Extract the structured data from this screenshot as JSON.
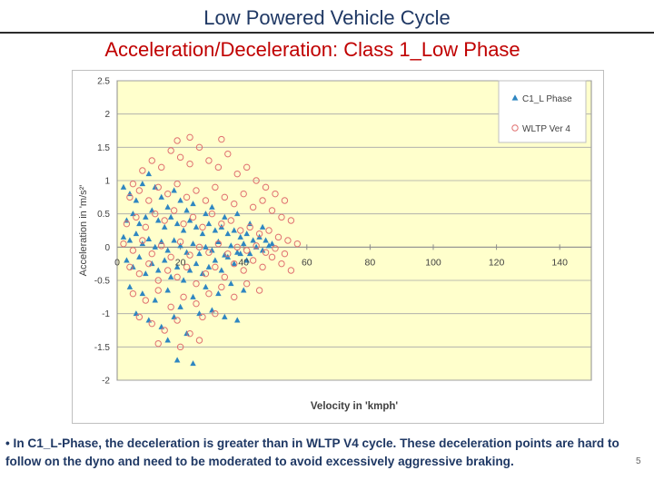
{
  "slide": {
    "title": "Low Powered Vehicle Cycle",
    "subtitle": "Acceleration/Deceleration: Class 1_Low Phase",
    "footnote": "• In C1_L-Phase, the deceleration is greater than in WLTP V4 cycle. These deceleration points are hard to follow on the dyno and need to be moderated to avoid excessively aggressive braking.",
    "page_number": "5"
  },
  "chart_data": {
    "type": "scatter",
    "xlabel": "Velocity in 'kmph'",
    "ylabel": "Acceleration in 'm/s²'",
    "xlim": [
      0,
      150
    ],
    "ylim": [
      -2,
      2.5
    ],
    "xticks": [
      0,
      20,
      40,
      60,
      80,
      100,
      120,
      140
    ],
    "yticks": [
      -2,
      -1.5,
      -1,
      -0.5,
      0,
      0.5,
      1,
      1.5,
      2,
      2.5
    ],
    "grid": "horizontal",
    "legend_position": "top-right",
    "plot_background": "#ffffcc",
    "series": [
      {
        "name": "C1_L Phase",
        "marker": "triangle",
        "color": "#2e86c1",
        "points": [
          [
            2,
            0.9
          ],
          [
            4,
            0.8
          ],
          [
            6,
            0.7
          ],
          [
            8,
            0.95
          ],
          [
            10,
            1.1
          ],
          [
            12,
            0.9
          ],
          [
            14,
            0.75
          ],
          [
            16,
            0.6
          ],
          [
            18,
            0.85
          ],
          [
            20,
            0.7
          ],
          [
            22,
            0.55
          ],
          [
            24,
            0.65
          ],
          [
            28,
            0.5
          ],
          [
            30,
            0.6
          ],
          [
            34,
            0.45
          ],
          [
            38,
            0.5
          ],
          [
            42,
            0.35
          ],
          [
            46,
            0.3
          ],
          [
            3,
            0.4
          ],
          [
            5,
            0.5
          ],
          [
            7,
            0.35
          ],
          [
            9,
            0.45
          ],
          [
            11,
            0.55
          ],
          [
            13,
            0.4
          ],
          [
            15,
            0.3
          ],
          [
            17,
            0.45
          ],
          [
            19,
            0.35
          ],
          [
            21,
            0.25
          ],
          [
            23,
            0.4
          ],
          [
            25,
            0.3
          ],
          [
            27,
            0.2
          ],
          [
            29,
            0.35
          ],
          [
            31,
            0.25
          ],
          [
            33,
            0.3
          ],
          [
            35,
            0.2
          ],
          [
            37,
            0.25
          ],
          [
            39,
            0.15
          ],
          [
            41,
            0.2
          ],
          [
            43,
            0.1
          ],
          [
            45,
            0.15
          ],
          [
            47,
            0.1
          ],
          [
            49,
            0.05
          ],
          [
            2,
            0.15
          ],
          [
            4,
            0.1
          ],
          [
            6,
            0.2
          ],
          [
            8,
            0.05
          ],
          [
            10,
            0.12
          ],
          [
            12,
            0.0
          ],
          [
            14,
            0.08
          ],
          [
            16,
            -0.05
          ],
          [
            18,
            0.1
          ],
          [
            20,
            0.02
          ],
          [
            22,
            -0.08
          ],
          [
            24,
            0.05
          ],
          [
            26,
            -0.1
          ],
          [
            28,
            0.0
          ],
          [
            30,
            -0.05
          ],
          [
            32,
            0.08
          ],
          [
            34,
            -0.12
          ],
          [
            36,
            0.02
          ],
          [
            38,
            -0.08
          ],
          [
            40,
            0.05
          ],
          [
            42,
            -0.1
          ],
          [
            44,
            0.0
          ],
          [
            46,
            -0.05
          ],
          [
            48,
            0.02
          ],
          [
            3,
            -0.2
          ],
          [
            5,
            -0.3
          ],
          [
            7,
            -0.15
          ],
          [
            9,
            -0.4
          ],
          [
            11,
            -0.25
          ],
          [
            13,
            -0.35
          ],
          [
            15,
            -0.2
          ],
          [
            17,
            -0.45
          ],
          [
            19,
            -0.3
          ],
          [
            21,
            -0.5
          ],
          [
            23,
            -0.35
          ],
          [
            25,
            -0.25
          ],
          [
            27,
            -0.4
          ],
          [
            29,
            -0.3
          ],
          [
            31,
            -0.2
          ],
          [
            33,
            -0.35
          ],
          [
            35,
            -0.15
          ],
          [
            37,
            -0.25
          ],
          [
            39,
            -0.1
          ],
          [
            41,
            -0.2
          ],
          [
            4,
            -0.6
          ],
          [
            8,
            -0.7
          ],
          [
            12,
            -0.8
          ],
          [
            16,
            -0.65
          ],
          [
            20,
            -0.9
          ],
          [
            24,
            -0.75
          ],
          [
            28,
            -0.6
          ],
          [
            32,
            -0.7
          ],
          [
            36,
            -0.55
          ],
          [
            40,
            -0.65
          ],
          [
            6,
            -1.0
          ],
          [
            10,
            -1.1
          ],
          [
            14,
            -1.2
          ],
          [
            18,
            -1.05
          ],
          [
            22,
            -1.3
          ],
          [
            26,
            -1.0
          ],
          [
            30,
            -0.95
          ],
          [
            34,
            -1.05
          ],
          [
            38,
            -1.1
          ],
          [
            16,
            -1.4
          ],
          [
            19,
            -1.7
          ],
          [
            24,
            -1.75
          ]
        ]
      },
      {
        "name": "WLTP Ver 4",
        "marker": "open-circle",
        "color": "#e07070",
        "points": [
          [
            5,
            0.95
          ],
          [
            8,
            1.15
          ],
          [
            11,
            1.3
          ],
          [
            14,
            1.2
          ],
          [
            17,
            1.45
          ],
          [
            20,
            1.35
          ],
          [
            23,
            1.25
          ],
          [
            26,
            1.5
          ],
          [
            29,
            1.3
          ],
          [
            32,
            1.2
          ],
          [
            35,
            1.4
          ],
          [
            38,
            1.1
          ],
          [
            41,
            1.2
          ],
          [
            44,
            1.0
          ],
          [
            47,
            0.9
          ],
          [
            50,
            0.8
          ],
          [
            53,
            0.7
          ],
          [
            19,
            1.6
          ],
          [
            23,
            1.65
          ],
          [
            33,
            1.62
          ],
          [
            4,
            0.75
          ],
          [
            7,
            0.85
          ],
          [
            10,
            0.7
          ],
          [
            13,
            0.9
          ],
          [
            16,
            0.8
          ],
          [
            19,
            0.95
          ],
          [
            22,
            0.75
          ],
          [
            25,
            0.85
          ],
          [
            28,
            0.7
          ],
          [
            31,
            0.9
          ],
          [
            34,
            0.75
          ],
          [
            37,
            0.65
          ],
          [
            40,
            0.8
          ],
          [
            43,
            0.6
          ],
          [
            46,
            0.7
          ],
          [
            49,
            0.55
          ],
          [
            52,
            0.45
          ],
          [
            55,
            0.4
          ],
          [
            3,
            0.35
          ],
          [
            6,
            0.45
          ],
          [
            9,
            0.3
          ],
          [
            12,
            0.5
          ],
          [
            15,
            0.4
          ],
          [
            18,
            0.55
          ],
          [
            21,
            0.35
          ],
          [
            24,
            0.45
          ],
          [
            27,
            0.3
          ],
          [
            30,
            0.5
          ],
          [
            33,
            0.35
          ],
          [
            36,
            0.4
          ],
          [
            39,
            0.25
          ],
          [
            42,
            0.3
          ],
          [
            45,
            0.2
          ],
          [
            48,
            0.25
          ],
          [
            51,
            0.15
          ],
          [
            54,
            0.1
          ],
          [
            57,
            0.05
          ],
          [
            2,
            0.05
          ],
          [
            5,
            -0.05
          ],
          [
            8,
            0.1
          ],
          [
            11,
            -0.1
          ],
          [
            14,
            0.02
          ],
          [
            17,
            -0.15
          ],
          [
            20,
            0.08
          ],
          [
            23,
            -0.12
          ],
          [
            26,
            0.0
          ],
          [
            29,
            -0.08
          ],
          [
            32,
            0.05
          ],
          [
            35,
            -0.1
          ],
          [
            38,
            0.0
          ],
          [
            41,
            -0.05
          ],
          [
            44,
            0.02
          ],
          [
            47,
            -0.08
          ],
          [
            50,
            -0.02
          ],
          [
            53,
            -0.1
          ],
          [
            4,
            -0.3
          ],
          [
            7,
            -0.4
          ],
          [
            10,
            -0.25
          ],
          [
            13,
            -0.5
          ],
          [
            16,
            -0.35
          ],
          [
            19,
            -0.45
          ],
          [
            22,
            -0.3
          ],
          [
            25,
            -0.55
          ],
          [
            28,
            -0.4
          ],
          [
            31,
            -0.3
          ],
          [
            34,
            -0.45
          ],
          [
            37,
            -0.25
          ],
          [
            40,
            -0.35
          ],
          [
            43,
            -0.2
          ],
          [
            46,
            -0.3
          ],
          [
            49,
            -0.15
          ],
          [
            52,
            -0.25
          ],
          [
            55,
            -0.35
          ],
          [
            5,
            -0.7
          ],
          [
            9,
            -0.8
          ],
          [
            13,
            -0.65
          ],
          [
            17,
            -0.9
          ],
          [
            21,
            -0.75
          ],
          [
            25,
            -0.85
          ],
          [
            29,
            -0.7
          ],
          [
            33,
            -0.6
          ],
          [
            37,
            -0.75
          ],
          [
            41,
            -0.55
          ],
          [
            45,
            -0.65
          ],
          [
            7,
            -1.05
          ],
          [
            11,
            -1.15
          ],
          [
            15,
            -1.25
          ],
          [
            19,
            -1.1
          ],
          [
            23,
            -1.3
          ],
          [
            27,
            -1.05
          ],
          [
            31,
            -1.0
          ],
          [
            13,
            -1.45
          ],
          [
            20,
            -1.5
          ],
          [
            26,
            -1.4
          ]
        ]
      }
    ]
  }
}
